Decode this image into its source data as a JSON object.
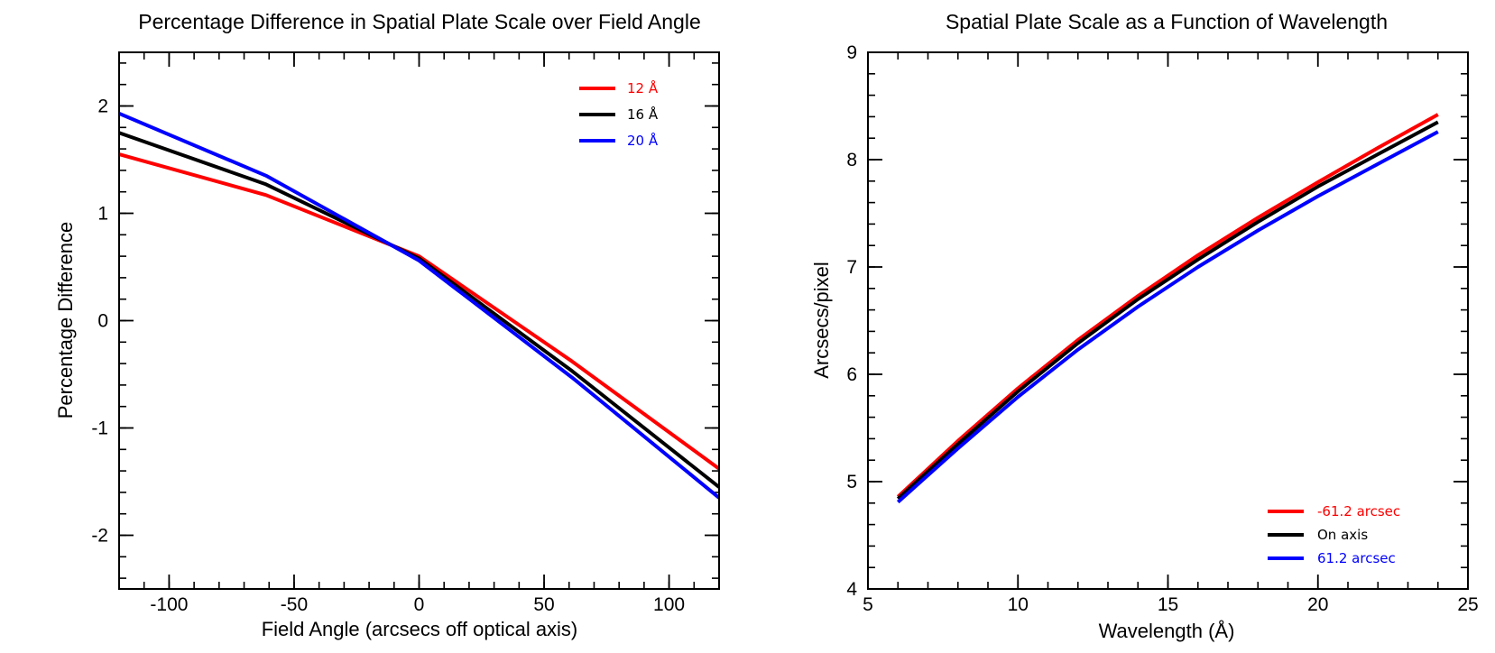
{
  "chart_data": [
    {
      "type": "line",
      "title": "Percentage Difference in Spatial Plate Scale over Field Angle",
      "xlabel": "Field Angle (arcsecs off optical axis)",
      "ylabel": "Percentage Difference",
      "xlim": [
        -120,
        120
      ],
      "ylim": [
        -2.5,
        2.5
      ],
      "xticks": [
        -100,
        -50,
        0,
        50,
        100
      ],
      "yticks": [
        -2,
        -1,
        0,
        1,
        2
      ],
      "xtick_labels": [
        "-100",
        "-50",
        "0",
        "50",
        "100"
      ],
      "ytick_labels": [
        "-2",
        "-1",
        "0",
        "1",
        "2"
      ],
      "legend_position": "top-right",
      "series": [
        {
          "name": "12 Å",
          "color": "#ff0000",
          "x": [
            -120,
            -61.2,
            0,
            61.2,
            120
          ],
          "y": [
            1.55,
            1.17,
            0.6,
            -0.38,
            -1.38
          ]
        },
        {
          "name": "16 Å",
          "color": "#000000",
          "x": [
            -120,
            -61.2,
            0,
            61.2,
            120
          ],
          "y": [
            1.75,
            1.27,
            0.58,
            -0.47,
            -1.55
          ]
        },
        {
          "name": "20 Å",
          "color": "#0000ff",
          "x": [
            -120,
            -61.2,
            0,
            61.2,
            120
          ],
          "y": [
            1.93,
            1.35,
            0.56,
            -0.53,
            -1.65
          ]
        }
      ]
    },
    {
      "type": "line",
      "title": "Spatial Plate Scale as a Function of Wavelength",
      "xlabel": "Wavelength (Å)",
      "ylabel": "Arcsecs/pixel",
      "xlim": [
        5,
        25
      ],
      "ylim": [
        4,
        9
      ],
      "xticks": [
        5,
        10,
        15,
        20,
        25
      ],
      "yticks": [
        4,
        5,
        6,
        7,
        8,
        9
      ],
      "xtick_labels": [
        "5",
        "10",
        "15",
        "20",
        "25"
      ],
      "ytick_labels": [
        "4",
        "5",
        "6",
        "7",
        "8",
        "9"
      ],
      "legend_position": "bottom-right",
      "series": [
        {
          "name": "-61.2 arcsec",
          "color": "#ff0000",
          "x": [
            6,
            8,
            10,
            12,
            14,
            16,
            18,
            20,
            22,
            24
          ],
          "y": [
            4.86,
            5.38,
            5.87,
            6.32,
            6.73,
            7.11,
            7.46,
            7.79,
            8.11,
            8.42
          ]
        },
        {
          "name": "On axis",
          "color": "#000000",
          "x": [
            6,
            8,
            10,
            12,
            14,
            16,
            18,
            20,
            22,
            24
          ],
          "y": [
            4.84,
            5.35,
            5.84,
            6.29,
            6.7,
            7.07,
            7.42,
            7.75,
            8.05,
            8.35
          ]
        },
        {
          "name": "61.2 arcsec",
          "color": "#0000ff",
          "x": [
            6,
            8,
            10,
            12,
            14,
            16,
            18,
            20,
            22,
            24
          ],
          "y": [
            4.81,
            5.31,
            5.79,
            6.23,
            6.63,
            7.0,
            7.34,
            7.66,
            7.96,
            8.26
          ]
        }
      ]
    }
  ]
}
